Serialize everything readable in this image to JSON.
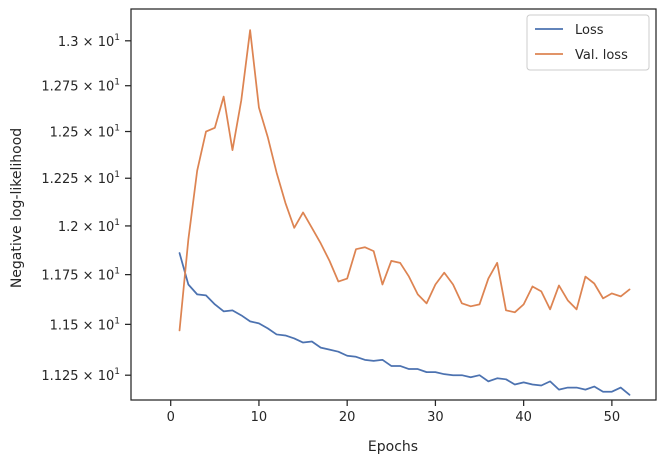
{
  "chart_data": {
    "type": "line",
    "xlabel": "Epochs",
    "ylabel": "Negative log-likelihood",
    "yscale": "log",
    "xlim": [
      -4.5,
      55
    ],
    "ylim": [
      11.13,
      13.18
    ],
    "grid": false,
    "legend_position": "top-right",
    "x_ticks": [
      0,
      10,
      20,
      30,
      40,
      50
    ],
    "x_tick_labels": [
      "0",
      "10",
      "20",
      "30",
      "40",
      "50"
    ],
    "y_ticks": [
      11.25,
      11.5,
      11.75,
      12.0,
      12.25,
      12.5,
      12.75,
      13.0
    ],
    "y_tick_labels": [
      {
        "mantissa": "1.125",
        "base": "10",
        "exp": "1"
      },
      {
        "mantissa": "1.15",
        "base": "10",
        "exp": "1"
      },
      {
        "mantissa": "1.175",
        "base": "10",
        "exp": "1"
      },
      {
        "mantissa": "1.2",
        "base": "10",
        "exp": "1"
      },
      {
        "mantissa": "1.225",
        "base": "10",
        "exp": "1"
      },
      {
        "mantissa": "1.25",
        "base": "10",
        "exp": "1"
      },
      {
        "mantissa": "1.275",
        "base": "10",
        "exp": "1"
      },
      {
        "mantissa": "1.3",
        "base": "10",
        "exp": "1"
      }
    ],
    "x": [
      1,
      2,
      3,
      4,
      5,
      6,
      7,
      8,
      9,
      10,
      11,
      12,
      13,
      14,
      15,
      16,
      17,
      18,
      19,
      20,
      21,
      22,
      23,
      24,
      25,
      26,
      27,
      28,
      29,
      30,
      31,
      32,
      33,
      34,
      35,
      36,
      37,
      38,
      39,
      40,
      41,
      42,
      43,
      44,
      45,
      46,
      47,
      48,
      49,
      50,
      51,
      52
    ],
    "series": [
      {
        "name": "Loss",
        "color": "#4c72b0",
        "values": [
          11.86,
          11.7,
          11.65,
          11.645,
          11.6,
          11.565,
          11.57,
          11.545,
          11.515,
          11.505,
          11.48,
          11.45,
          11.445,
          11.43,
          11.41,
          11.415,
          11.385,
          11.375,
          11.365,
          11.345,
          11.34,
          11.325,
          11.32,
          11.325,
          11.295,
          11.295,
          11.28,
          11.28,
          11.265,
          11.265,
          11.255,
          11.25,
          11.25,
          11.24,
          11.25,
          11.22,
          11.235,
          11.23,
          11.205,
          11.215,
          11.205,
          11.2,
          11.22,
          11.18,
          11.19,
          11.19,
          11.18,
          11.195,
          11.17,
          11.17,
          11.19,
          11.155
        ]
      },
      {
        "name": "Val. loss",
        "color": "#dd8452",
        "values": [
          11.47,
          11.93,
          12.29,
          12.5,
          12.52,
          12.69,
          12.4,
          12.67,
          13.06,
          12.63,
          12.47,
          12.28,
          12.12,
          11.99,
          12.07,
          11.99,
          11.91,
          11.82,
          11.715,
          11.73,
          11.88,
          11.89,
          11.87,
          11.7,
          11.82,
          11.81,
          11.74,
          11.65,
          11.605,
          11.7,
          11.76,
          11.7,
          11.605,
          11.59,
          11.6,
          11.73,
          11.81,
          11.57,
          11.56,
          11.6,
          11.69,
          11.665,
          11.575,
          11.695,
          11.62,
          11.575,
          11.74,
          11.705,
          11.63,
          11.655,
          11.64,
          11.675
        ]
      }
    ]
  }
}
